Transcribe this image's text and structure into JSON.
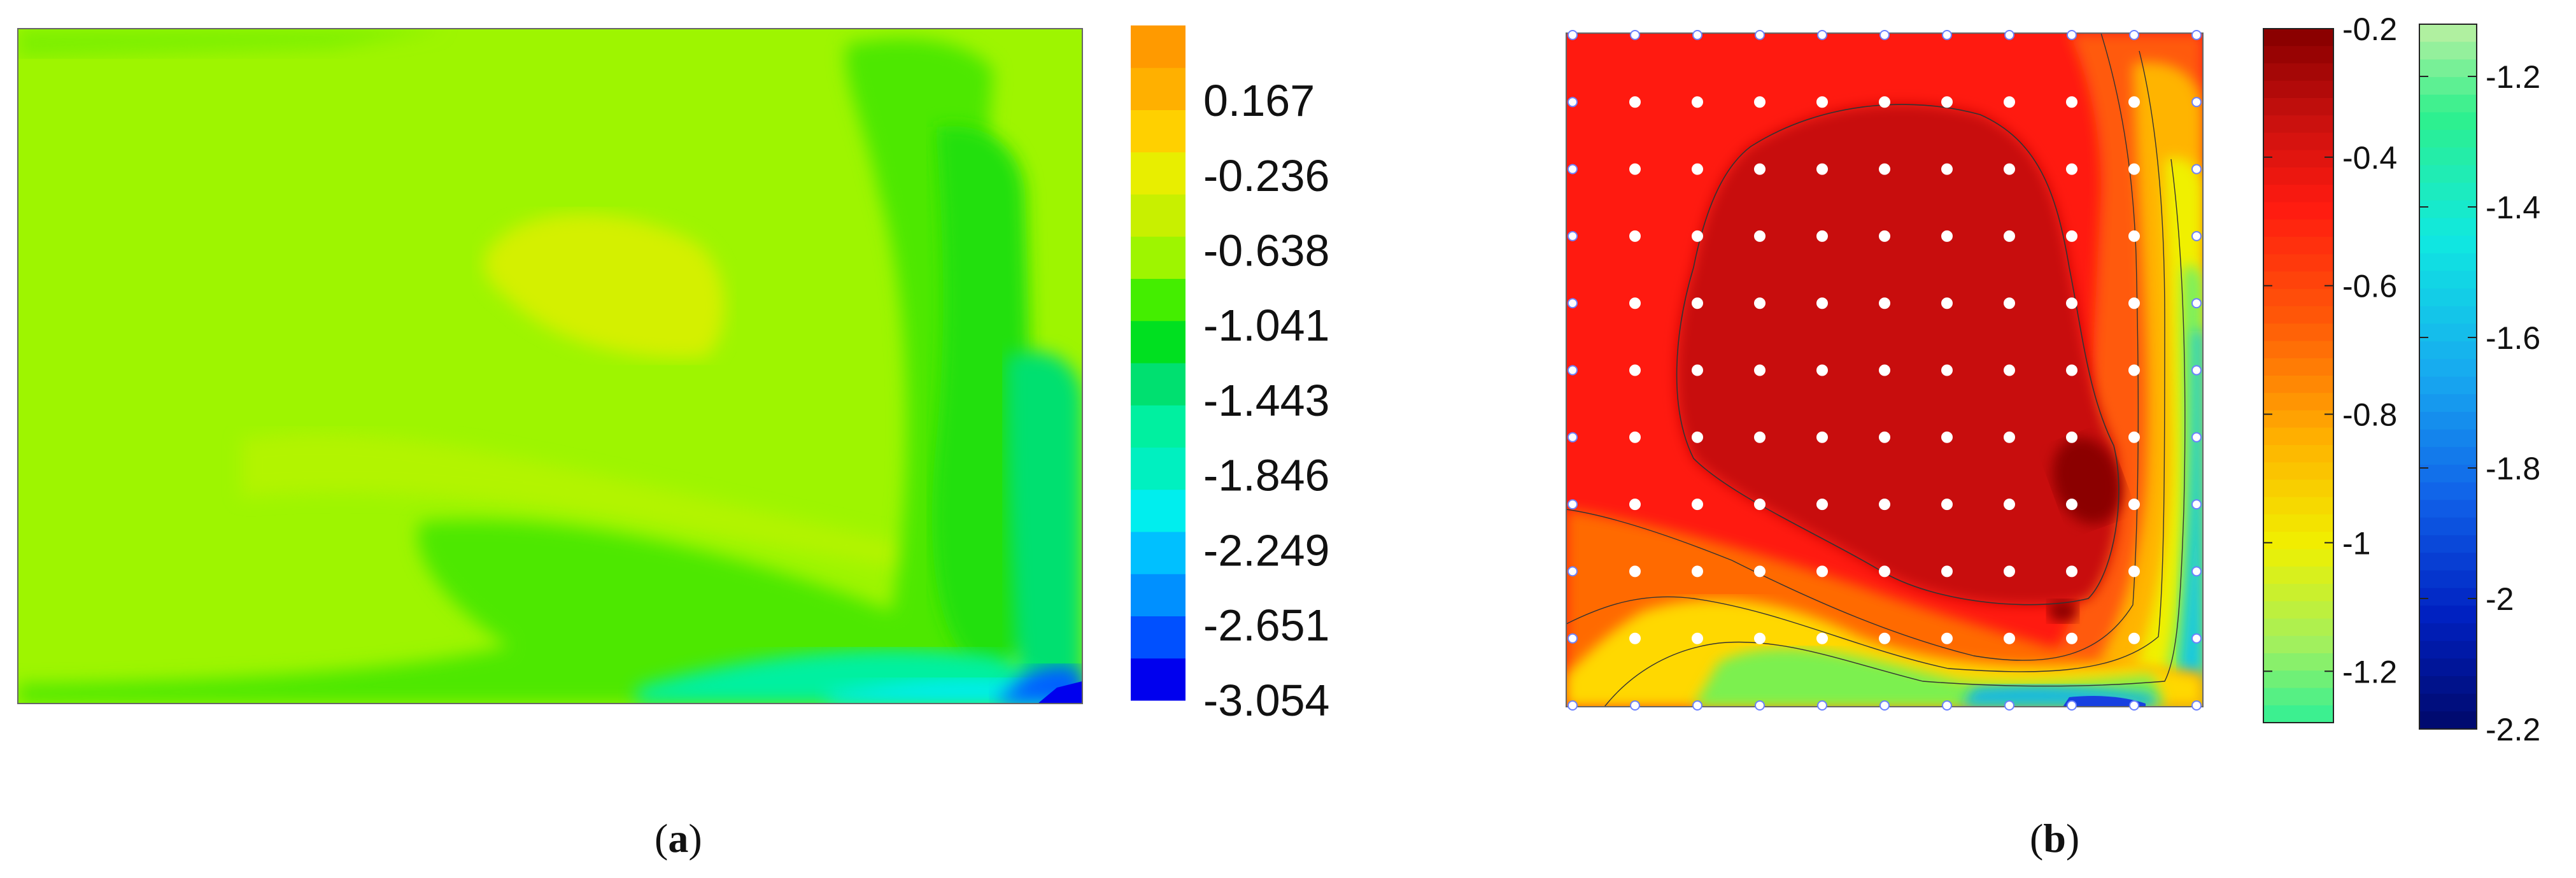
{
  "chart_data": [
    {
      "type": "heatmap",
      "panel_label": "a",
      "colorbar_ticks": [
        "0.167",
        "-0.236",
        "-0.638",
        "-1.041",
        "-1.443",
        "-1.846",
        "-2.249",
        "-2.651",
        "-3.054"
      ],
      "colorbar_range": [
        -3.054,
        0.57
      ],
      "grid": false,
      "legend": "right",
      "colors": [
        "#0000ee",
        "#0050ff",
        "#0090ff",
        "#00c0ff",
        "#00eeee",
        "#00f0c0",
        "#00f0a0",
        "#00e070",
        "#00e020",
        "#44ee00",
        "#9ef500",
        "#c8f000",
        "#e8ee00",
        "#ffd000",
        "#ffb000",
        "#ff9a00"
      ],
      "colors_named": {
        "background": "#9ef500",
        "upper_bubble": "#d4f000",
        "l_band": "#44e800",
        "corner_low": "#0000ee"
      }
    },
    {
      "type": "heatmap",
      "panel_label": "b",
      "colorbar_1": {
        "ticks": [
          "-0.2",
          "-0.4",
          "-0.6",
          "-0.8",
          "-1",
          "-1.2"
        ],
        "range": [
          -1.28,
          -0.2
        ]
      },
      "colorbar_2": {
        "ticks": [
          "-1.2",
          "-1.4",
          "-1.6",
          "-1.8",
          "-2",
          "-2.2"
        ],
        "range": [
          -2.2,
          -1.12
        ]
      },
      "sensor_grid": {
        "rows": 11,
        "cols": 11
      },
      "grid": false,
      "legend": "right",
      "colors": {
        "dark_core": "#8b0000",
        "core": "#c8100e",
        "field": "#ff1a10",
        "transition": "#ffd800",
        "low": "#3cf090",
        "lowest": "#1840e0"
      }
    }
  ],
  "captions": {
    "a": "a",
    "b": "b"
  }
}
